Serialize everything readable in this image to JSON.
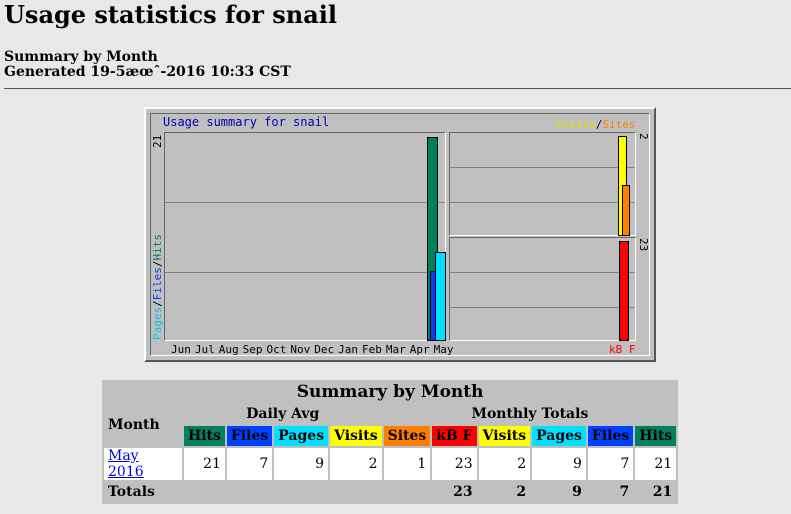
{
  "page": {
    "title": "Usage statistics for snail",
    "subtitle": "Summary by Month",
    "generated": "Generated 19-5æœˆ-2016 10:33 CST"
  },
  "graph": {
    "title": "Usage summary for snail",
    "visits_label": "Visits",
    "slash": "/",
    "sites_label": "Sites",
    "left_axis_max": "21",
    "left_axis_label_pages": "Pages",
    "left_axis_label_files": "Files",
    "left_axis_label_hits": "Hits",
    "right_top_max": "2",
    "right_bottom_max": "23",
    "kbf_label": "kB F",
    "months": [
      "Jun",
      "Jul",
      "Aug",
      "Sep",
      "Oct",
      "Nov",
      "Dec",
      "Jan",
      "Feb",
      "Mar",
      "Apr",
      "May"
    ],
    "colors": {
      "hits": "#00805c",
      "files": "#0040ff",
      "pages": "#00e0ff",
      "visits": "#ffff00",
      "sites": "#ff8000",
      "kbf": "#ff0000"
    }
  },
  "table": {
    "caption": "Summary by Month",
    "month_header": "Month",
    "daily_avg": "Daily Avg",
    "monthly_totals": "Monthly Totals",
    "daily_cols": [
      "Hits",
      "Files",
      "Pages",
      "Visits"
    ],
    "monthly_cols": [
      "Sites",
      "kB F",
      "Visits",
      "Pages",
      "Files",
      "Hits"
    ],
    "rows": [
      {
        "month": "May 2016",
        "values": [
          "21",
          "7",
          "9",
          "2",
          "1",
          "23",
          "2",
          "9",
          "7",
          "21"
        ]
      }
    ],
    "totals_label": "Totals",
    "totals": [
      "23",
      "2",
      "9",
      "7",
      "21"
    ]
  }
}
